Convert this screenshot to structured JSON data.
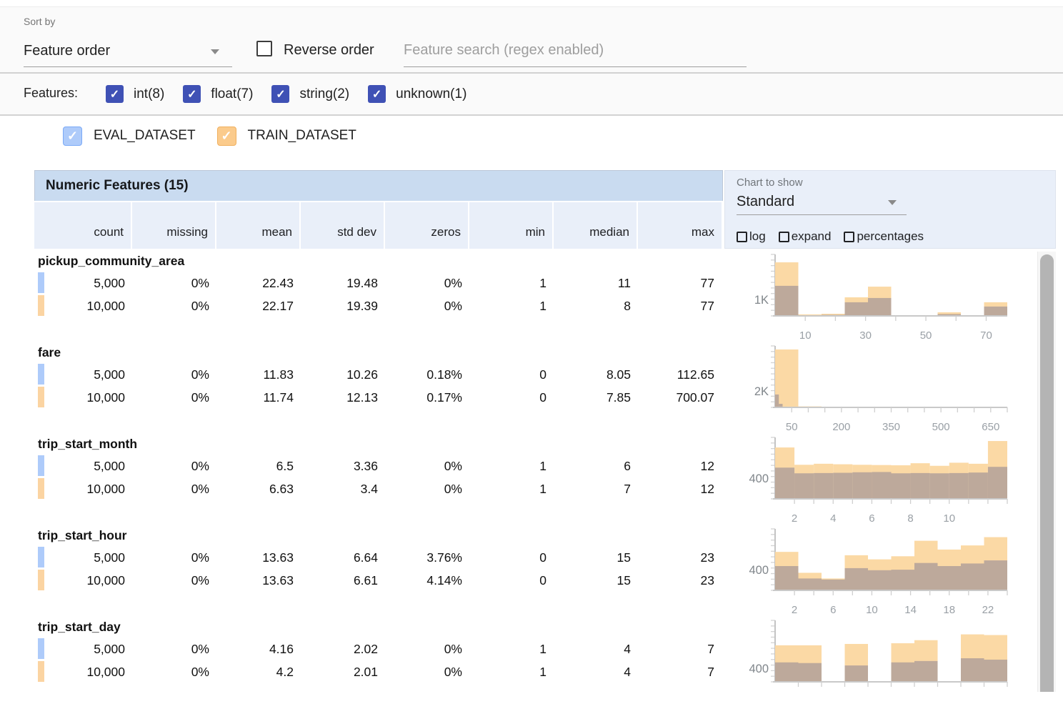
{
  "toolbar": {
    "sort_by_label": "Sort by",
    "sort_by_value": "Feature order",
    "reverse_order_label": "Reverse order",
    "search_placeholder": "Feature search (regex enabled)"
  },
  "features_filter": {
    "label": "Features:",
    "options": [
      {
        "label": "int(8)",
        "checked": true
      },
      {
        "label": "float(7)",
        "checked": true
      },
      {
        "label": "string(2)",
        "checked": true
      },
      {
        "label": "unknown(1)",
        "checked": true
      }
    ]
  },
  "datasets": [
    {
      "name": "EVAL_DATASET",
      "color": "#aecbfa",
      "border": "#7baaf7",
      "checked": true
    },
    {
      "name": "TRAIN_DATASET",
      "color": "#fbcb8c",
      "border": "#f0b05f",
      "checked": true
    }
  ],
  "table": {
    "title": "Numeric Features (15)",
    "columns": [
      "count",
      "missing",
      "mean",
      "std dev",
      "zeros",
      "min",
      "median",
      "max"
    ],
    "features": [
      {
        "name": "pickup_community_area",
        "rows": [
          {
            "dataset": "EVAL_DATASET",
            "marker_color": "#aecbfa",
            "values": [
              "5,000",
              "0%",
              "22.43",
              "19.48",
              "0%",
              "1",
              "11",
              "77"
            ]
          },
          {
            "dataset": "TRAIN_DATASET",
            "marker_color": "#fbd4a2",
            "values": [
              "10,000",
              "0%",
              "22.17",
              "19.39",
              "0%",
              "1",
              "8",
              "77"
            ]
          }
        ]
      },
      {
        "name": "fare",
        "rows": [
          {
            "dataset": "EVAL_DATASET",
            "marker_color": "#aecbfa",
            "values": [
              "5,000",
              "0%",
              "11.83",
              "10.26",
              "0.18%",
              "0",
              "8.05",
              "112.65"
            ]
          },
          {
            "dataset": "TRAIN_DATASET",
            "marker_color": "#fbd4a2",
            "values": [
              "10,000",
              "0%",
              "11.74",
              "12.13",
              "0.17%",
              "0",
              "7.85",
              "700.07"
            ]
          }
        ]
      },
      {
        "name": "trip_start_month",
        "rows": [
          {
            "dataset": "EVAL_DATASET",
            "marker_color": "#aecbfa",
            "values": [
              "5,000",
              "0%",
              "6.5",
              "3.36",
              "0%",
              "1",
              "6",
              "12"
            ]
          },
          {
            "dataset": "TRAIN_DATASET",
            "marker_color": "#fbd4a2",
            "values": [
              "10,000",
              "0%",
              "6.63",
              "3.4",
              "0%",
              "1",
              "7",
              "12"
            ]
          }
        ]
      },
      {
        "name": "trip_start_hour",
        "rows": [
          {
            "dataset": "EVAL_DATASET",
            "marker_color": "#aecbfa",
            "values": [
              "5,000",
              "0%",
              "13.63",
              "6.64",
              "3.76%",
              "0",
              "15",
              "23"
            ]
          },
          {
            "dataset": "TRAIN_DATASET",
            "marker_color": "#fbd4a2",
            "values": [
              "10,000",
              "0%",
              "13.63",
              "6.61",
              "4.14%",
              "0",
              "15",
              "23"
            ]
          }
        ]
      },
      {
        "name": "trip_start_day",
        "rows": [
          {
            "dataset": "EVAL_DATASET",
            "marker_color": "#aecbfa",
            "values": [
              "5,000",
              "0%",
              "4.16",
              "2.02",
              "0%",
              "1",
              "4",
              "7"
            ]
          },
          {
            "dataset": "TRAIN_DATASET",
            "marker_color": "#fbd4a2",
            "values": [
              "10,000",
              "0%",
              "4.2",
              "2.01",
              "0%",
              "1",
              "4",
              "7"
            ]
          }
        ]
      }
    ]
  },
  "chart_controls": {
    "label": "Chart to show",
    "selected": "Standard",
    "checkboxes": [
      {
        "label": "log",
        "checked": false
      },
      {
        "label": "expand",
        "checked": false
      },
      {
        "label": "percentages",
        "checked": false
      }
    ]
  },
  "chart_data": [
    {
      "feature": "pickup_community_area",
      "type": "bar",
      "ylabel": "1K",
      "ylabel_value": 1000,
      "ymax": 3740,
      "x_range": [
        0,
        77
      ],
      "x_ticks": [
        10,
        30,
        50,
        70
      ],
      "x_minor_step": 10,
      "series": [
        {
          "name": "TRAIN_DATASET",
          "color": "#fbd9a5",
          "range": [
            0,
            77
          ],
          "values": [
            3260,
            90,
            130,
            1130,
            1780,
            45,
            45,
            220,
            45,
            830
          ]
        },
        {
          "name": "EVAL_DATASET",
          "color": "#bda99b",
          "range": [
            0,
            77
          ],
          "values": [
            1830,
            45,
            65,
            830,
            1090,
            20,
            20,
            110,
            20,
            570
          ]
        }
      ]
    },
    {
      "feature": "fare",
      "type": "bar",
      "ylabel": "2K",
      "ylabel_value": 2000,
      "ymax": 7480,
      "x_range": [
        0,
        700
      ],
      "x_ticks": [
        50,
        200,
        350,
        500,
        650
      ],
      "x_minor_step": 50,
      "series": [
        {
          "name": "TRAIN_DATASET",
          "color": "#fbd9a5",
          "range": [
            0,
            700
          ],
          "values": [
            7050,
            120,
            40,
            25,
            15,
            10,
            8,
            5,
            3,
            2
          ]
        },
        {
          "name": "EVAL_DATASET",
          "color": "#bda99b",
          "range": [
            0,
            113
          ],
          "values": [
            1570,
            430,
            90,
            40,
            20,
            10,
            5,
            3,
            2,
            1
          ]
        }
      ]
    },
    {
      "feature": "trip_start_month",
      "type": "bar",
      "ylabel": "400",
      "ylabel_value": 400,
      "ymax": 1190,
      "x_range": [
        1,
        13
      ],
      "x_ticks": [
        2,
        4,
        6,
        8,
        10
      ],
      "x_minor_step": 1,
      "series": [
        {
          "name": "TRAIN_DATASET",
          "color": "#fbd9a5",
          "range": [
            1,
            13
          ],
          "values": [
            995,
            660,
            680,
            670,
            660,
            655,
            650,
            690,
            640,
            700,
            680,
            1120
          ]
        },
        {
          "name": "EVAL_DATASET",
          "color": "#bda99b",
          "range": [
            1,
            13
          ],
          "values": [
            605,
            495,
            500,
            505,
            515,
            520,
            495,
            500,
            495,
            500,
            510,
            620
          ]
        }
      ]
    },
    {
      "feature": "trip_start_hour",
      "type": "bar",
      "ylabel": "400",
      "ylabel_value": 400,
      "ymax": 1190,
      "x_range": [
        0,
        24
      ],
      "x_ticks": [
        2,
        6,
        10,
        14,
        18,
        22
      ],
      "x_minor_step": 2,
      "series": [
        {
          "name": "TRAIN_DATASET",
          "color": "#fbd9a5",
          "range": [
            0,
            24
          ],
          "values": [
            745,
            340,
            230,
            680,
            600,
            660,
            960,
            790,
            870,
            1030
          ]
        },
        {
          "name": "EVAL_DATASET",
          "color": "#bda99b",
          "range": [
            0,
            24
          ],
          "values": [
            470,
            230,
            210,
            430,
            390,
            400,
            530,
            470,
            520,
            580
          ]
        }
      ]
    },
    {
      "feature": "trip_start_day",
      "type": "bar",
      "ylabel": "400",
      "ylabel_value": 400,
      "ymax": 1800,
      "x_range": [
        0,
        10
      ],
      "x_ticks": [],
      "x_minor_step": 1,
      "series": [
        {
          "name": "TRAIN_DATASET",
          "color": "#fbd9a5",
          "range": [
            0,
            10
          ],
          "values": [
            1070,
            1070,
            0,
            1110,
            0,
            1130,
            1220,
            0,
            1390,
            1370
          ]
        },
        {
          "name": "EVAL_DATASET",
          "color": "#bda99b",
          "range": [
            0,
            10
          ],
          "values": [
            570,
            550,
            0,
            480,
            0,
            570,
            610,
            0,
            690,
            650
          ]
        }
      ]
    }
  ]
}
